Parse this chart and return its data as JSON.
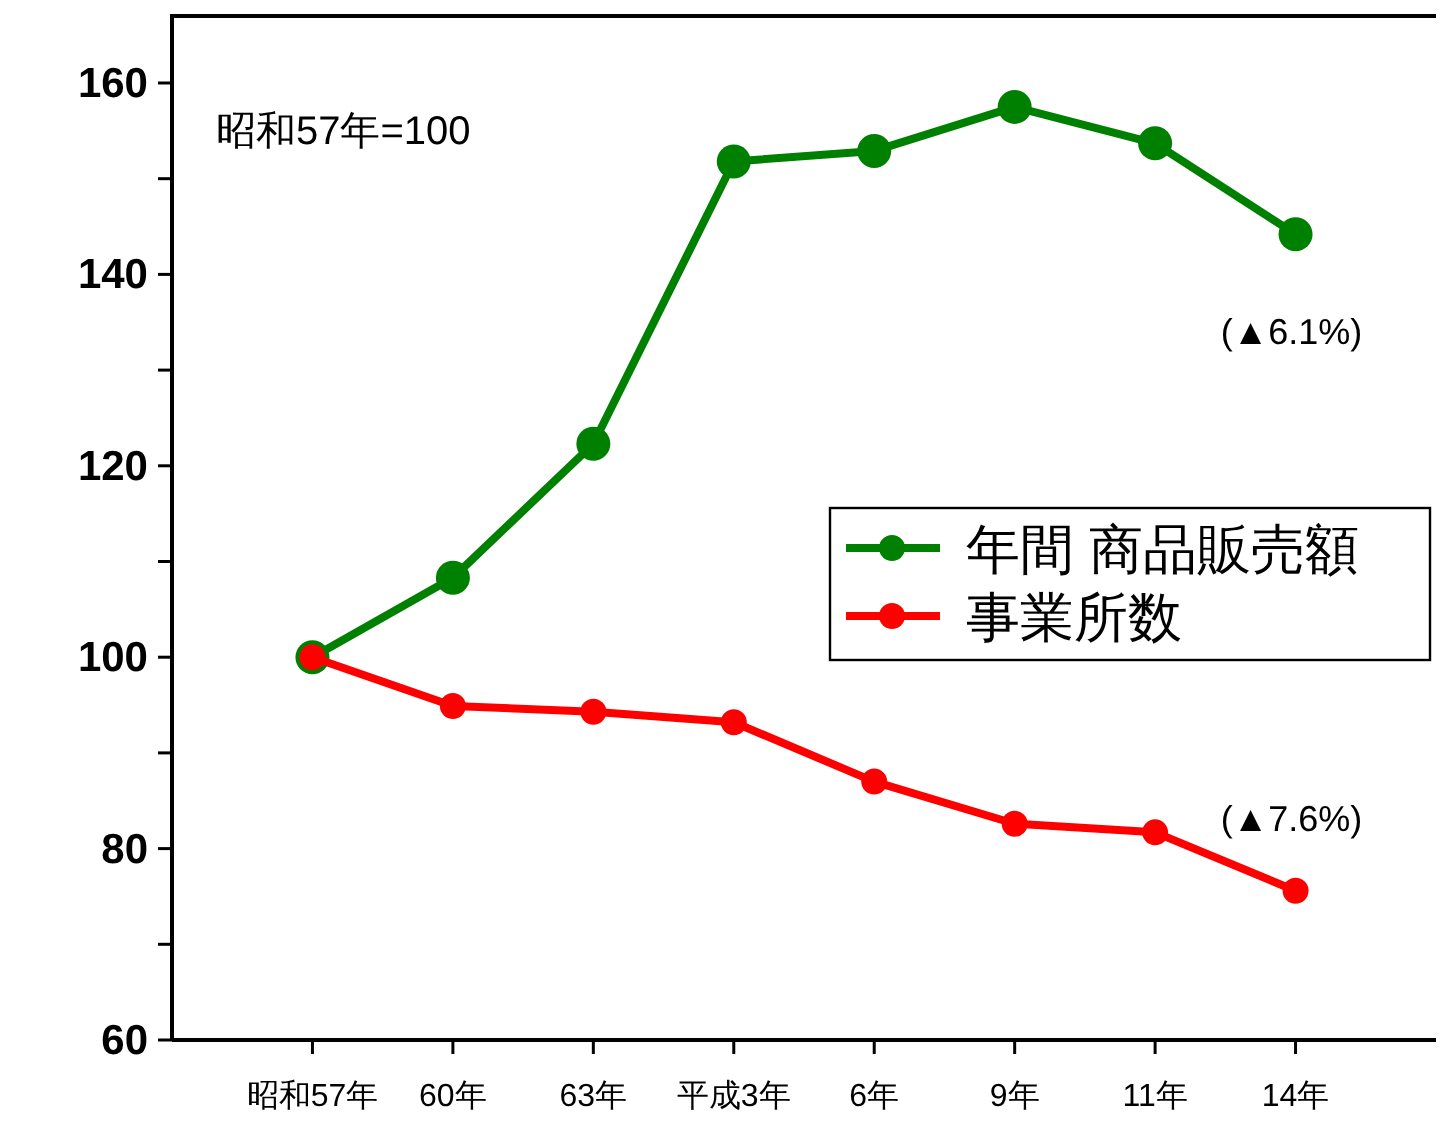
{
  "chart_data": {
    "type": "line",
    "categories": [
      "昭和57年",
      "60年",
      "63年",
      "平成3年",
      "6年",
      "9年",
      "11年",
      "14年"
    ],
    "series": [
      {
        "name": "年間 商品販売額",
        "color": "#008000",
        "values": [
          100,
          108.3,
          122.3,
          151.8,
          152.9,
          157.5,
          153.7,
          144.2
        ]
      },
      {
        "name": "事業所数",
        "color": "#ff0000",
        "values": [
          100,
          94.9,
          94.3,
          93.2,
          87.0,
          82.6,
          81.7,
          75.6
        ]
      }
    ],
    "ylim": [
      60,
      167
    ],
    "yticks": [
      60,
      {
        "value": 70,
        "label": null
      },
      80,
      {
        "value": 90,
        "label": null
      },
      100,
      {
        "value": 110,
        "label": null
      },
      120,
      {
        "value": 130,
        "label": null
      },
      140,
      {
        "value": 150,
        "label": null
      },
      160
    ],
    "annotations": [
      "昭和57年=100",
      {
        "text": "(▲6.1%)",
        "x": "14年",
        "y": 144.2
      },
      {
        "text": "(▲7.6%)",
        "x": "14年",
        "y": 75.6
      }
    ],
    "legend": "right",
    "marker": "circle",
    "line_style": "solid",
    "grid": false
  }
}
